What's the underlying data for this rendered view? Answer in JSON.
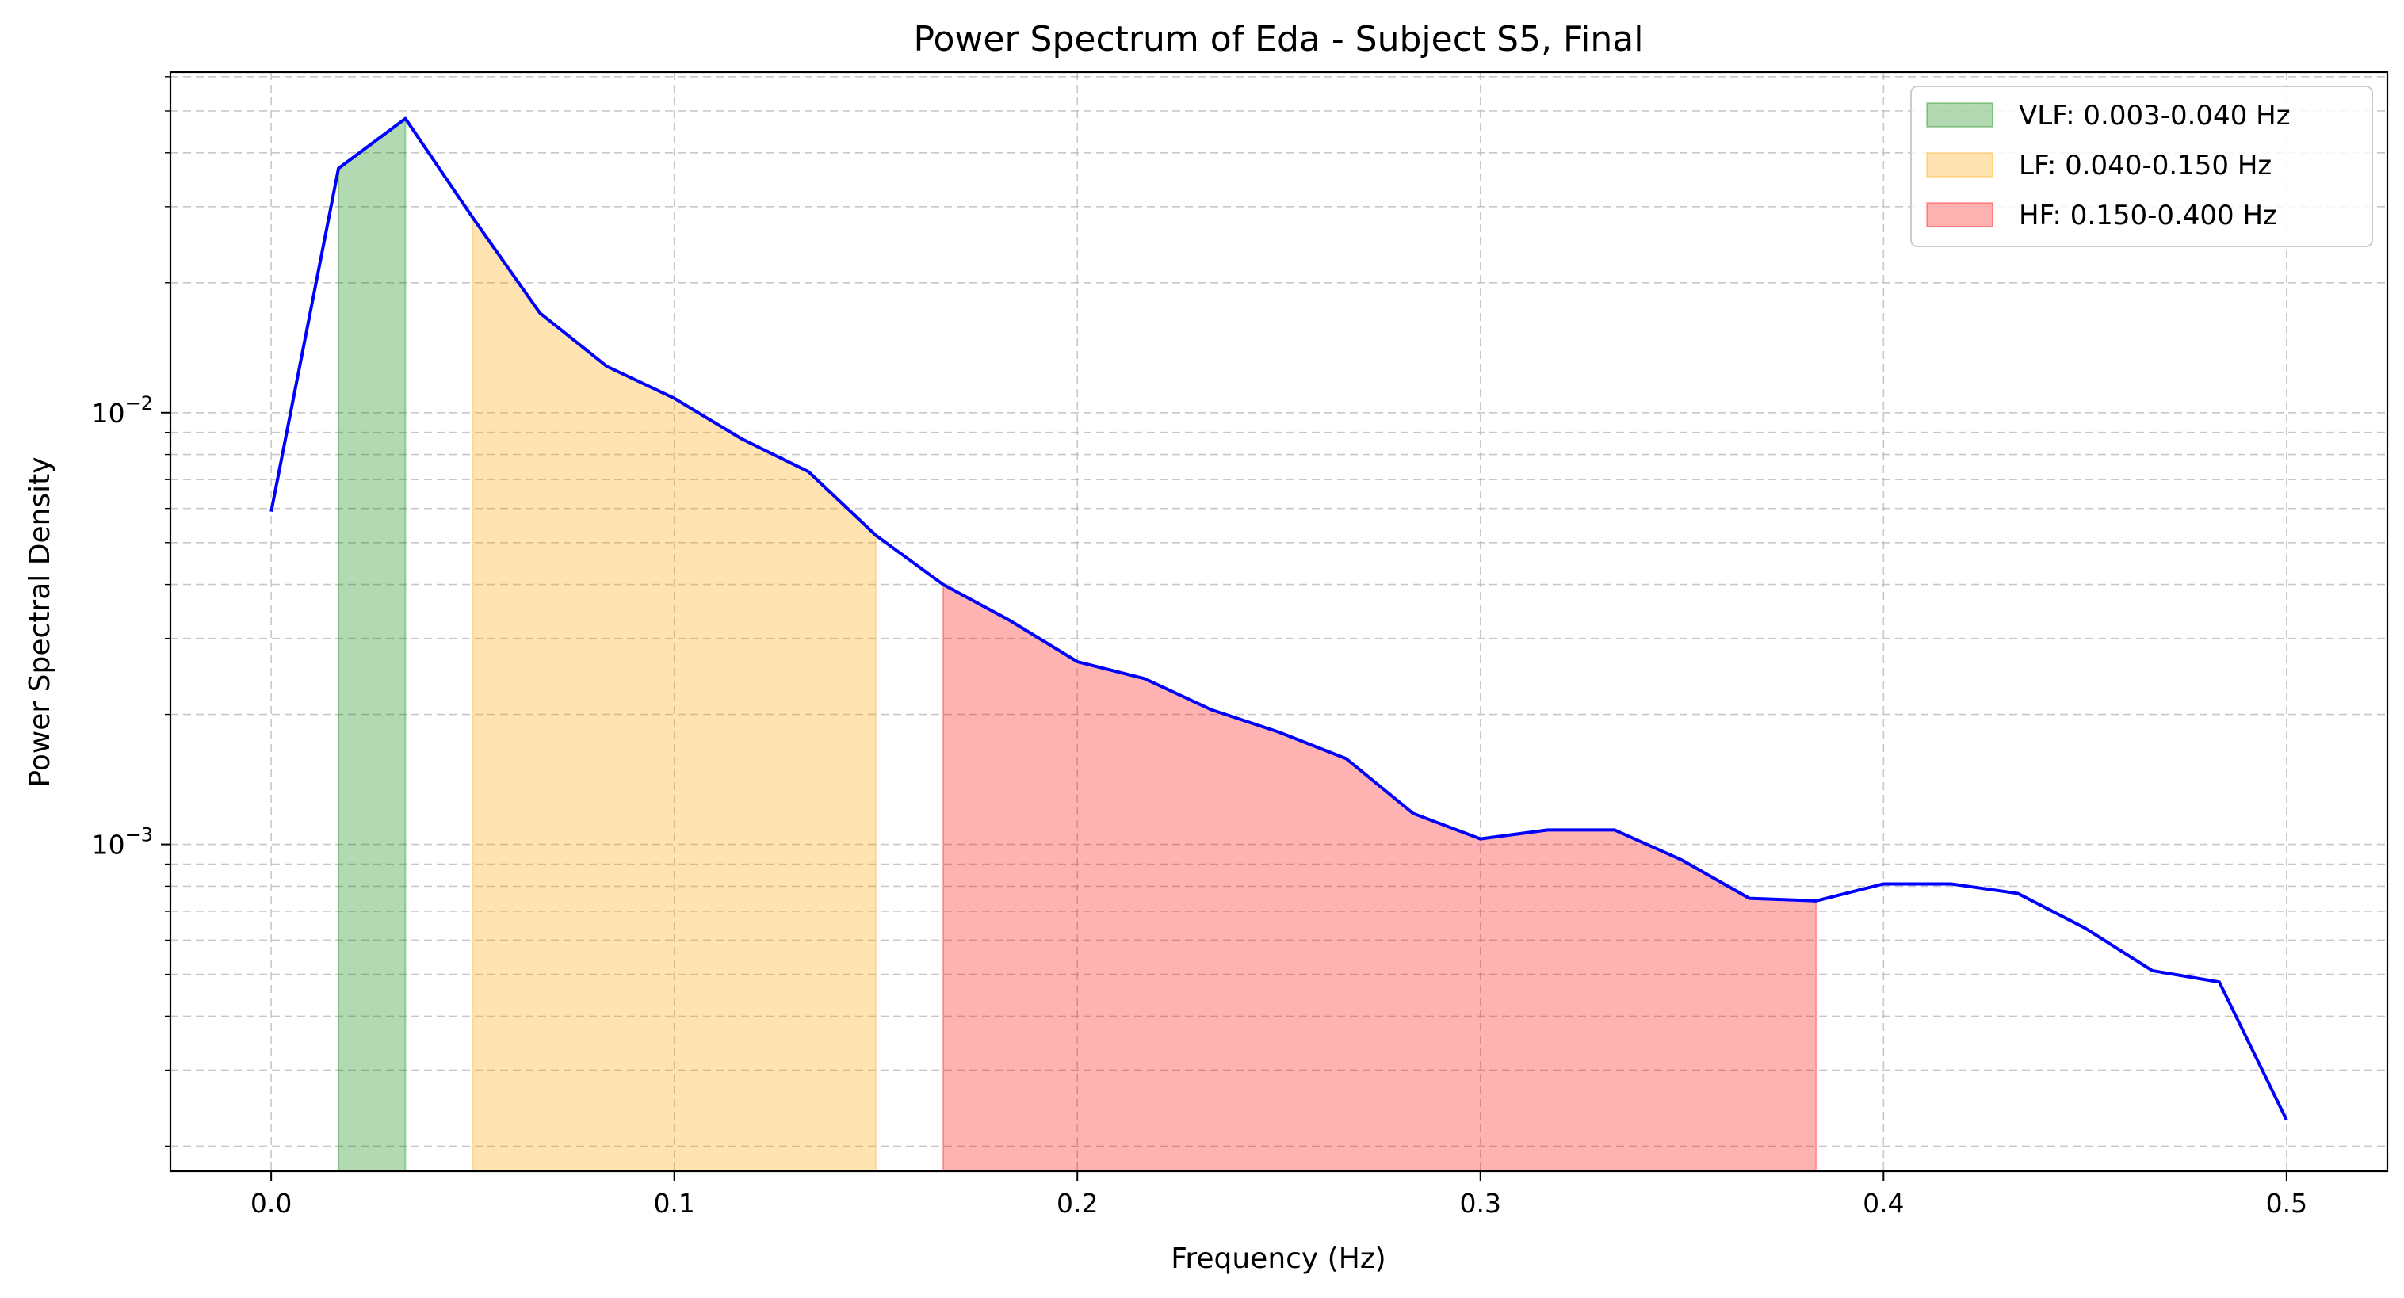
{
  "chart_data": {
    "type": "line",
    "title": "Power Spectrum of Eda - Subject S5, Final",
    "xlabel": "Frequency (Hz)",
    "ylabel": "Power Spectral Density",
    "y_scale": "log",
    "xlim": [
      -0.025,
      0.525
    ],
    "ylim": [
      0.000175,
      0.0615
    ],
    "x_ticks": [
      0.0,
      0.1,
      0.2,
      0.3,
      0.4,
      0.5
    ],
    "x_tick_labels": [
      "0.0",
      "0.1",
      "0.2",
      "0.3",
      "0.4",
      "0.5"
    ],
    "y_major_ticks": [
      0.001,
      0.01
    ],
    "y_tick_labels": [
      {
        "base": "10",
        "exp": "−3"
      },
      {
        "base": "10",
        "exp": "−2"
      }
    ],
    "grid": true,
    "legend_position": "top-right",
    "series": [
      {
        "color": "#0000ff",
        "x": [
          0.0,
          0.0167,
          0.0333,
          0.05,
          0.0667,
          0.0833,
          0.1,
          0.1167,
          0.1333,
          0.15,
          0.1667,
          0.1833,
          0.2,
          0.2167,
          0.2333,
          0.25,
          0.2667,
          0.2833,
          0.3,
          0.3167,
          0.3333,
          0.35,
          0.3667,
          0.3833,
          0.4,
          0.4167,
          0.4333,
          0.45,
          0.4667,
          0.4833,
          0.5
        ],
        "y": [
          0.0059,
          0.0368,
          0.048,
          0.0283,
          0.017,
          0.0128,
          0.0108,
          0.0087,
          0.0073,
          0.0052,
          0.004,
          0.0033,
          0.00265,
          0.00242,
          0.00205,
          0.00182,
          0.00158,
          0.00118,
          0.00103,
          0.00108,
          0.00108,
          0.00092,
          0.00075,
          0.00074,
          0.00081,
          0.00081,
          0.00077,
          0.00064,
          0.00051,
          0.00048,
          0.00023
        ]
      }
    ],
    "bands": [
      {
        "label": "VLF: 0.003-0.040 Hz",
        "from_index": 1,
        "to_index": 2,
        "color": "#008000",
        "opacity": 0.3
      },
      {
        "label": "LF: 0.040-0.150 Hz",
        "from_index": 3,
        "to_index": 9,
        "color": "#ffa500",
        "opacity": 0.3
      },
      {
        "label": "HF: 0.150-0.400 Hz",
        "from_index": 10,
        "to_index": 23,
        "color": "#ff0000",
        "opacity": 0.3
      }
    ]
  }
}
